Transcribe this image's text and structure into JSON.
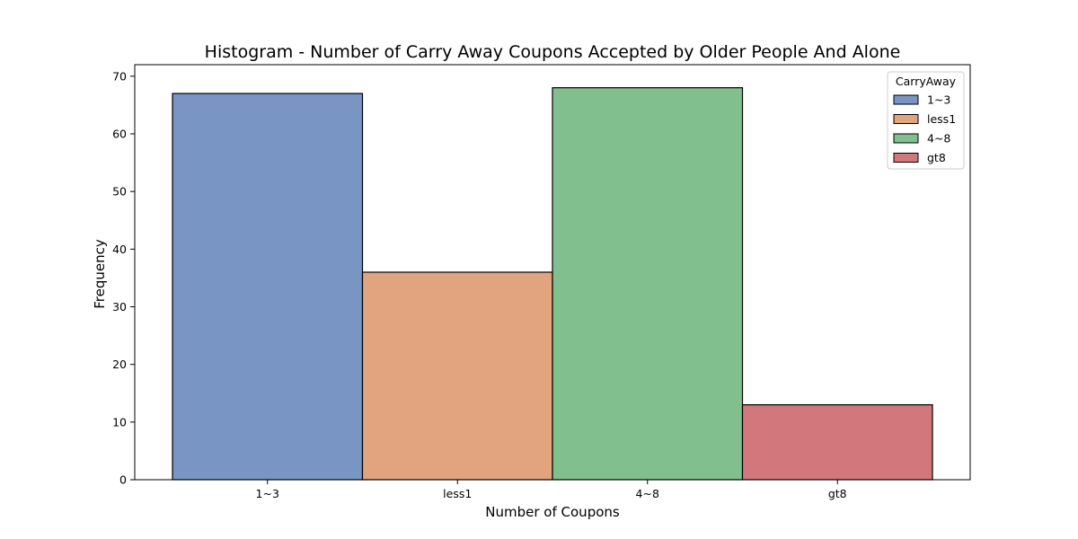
{
  "chart_data": {
    "type": "bar",
    "title": "Histogram - Number of Carry Away Coupons Accepted by Older People And Alone",
    "xlabel": "Number of Coupons",
    "ylabel": "Frequency",
    "categories": [
      "1~3",
      "less1",
      "4~8",
      "gt8"
    ],
    "values": [
      67,
      36,
      68,
      13
    ],
    "ylim": [
      0,
      72
    ],
    "yticks": [
      0,
      10,
      20,
      30,
      40,
      50,
      60,
      70
    ],
    "grid": false,
    "legend": {
      "title": "CarryAway",
      "placement": "top-right",
      "entries": [
        "1~3",
        "less1",
        "4~8",
        "gt8"
      ]
    },
    "colors": [
      "#7995c4",
      "#e2a47e",
      "#82bf8f",
      "#d2787c"
    ]
  }
}
